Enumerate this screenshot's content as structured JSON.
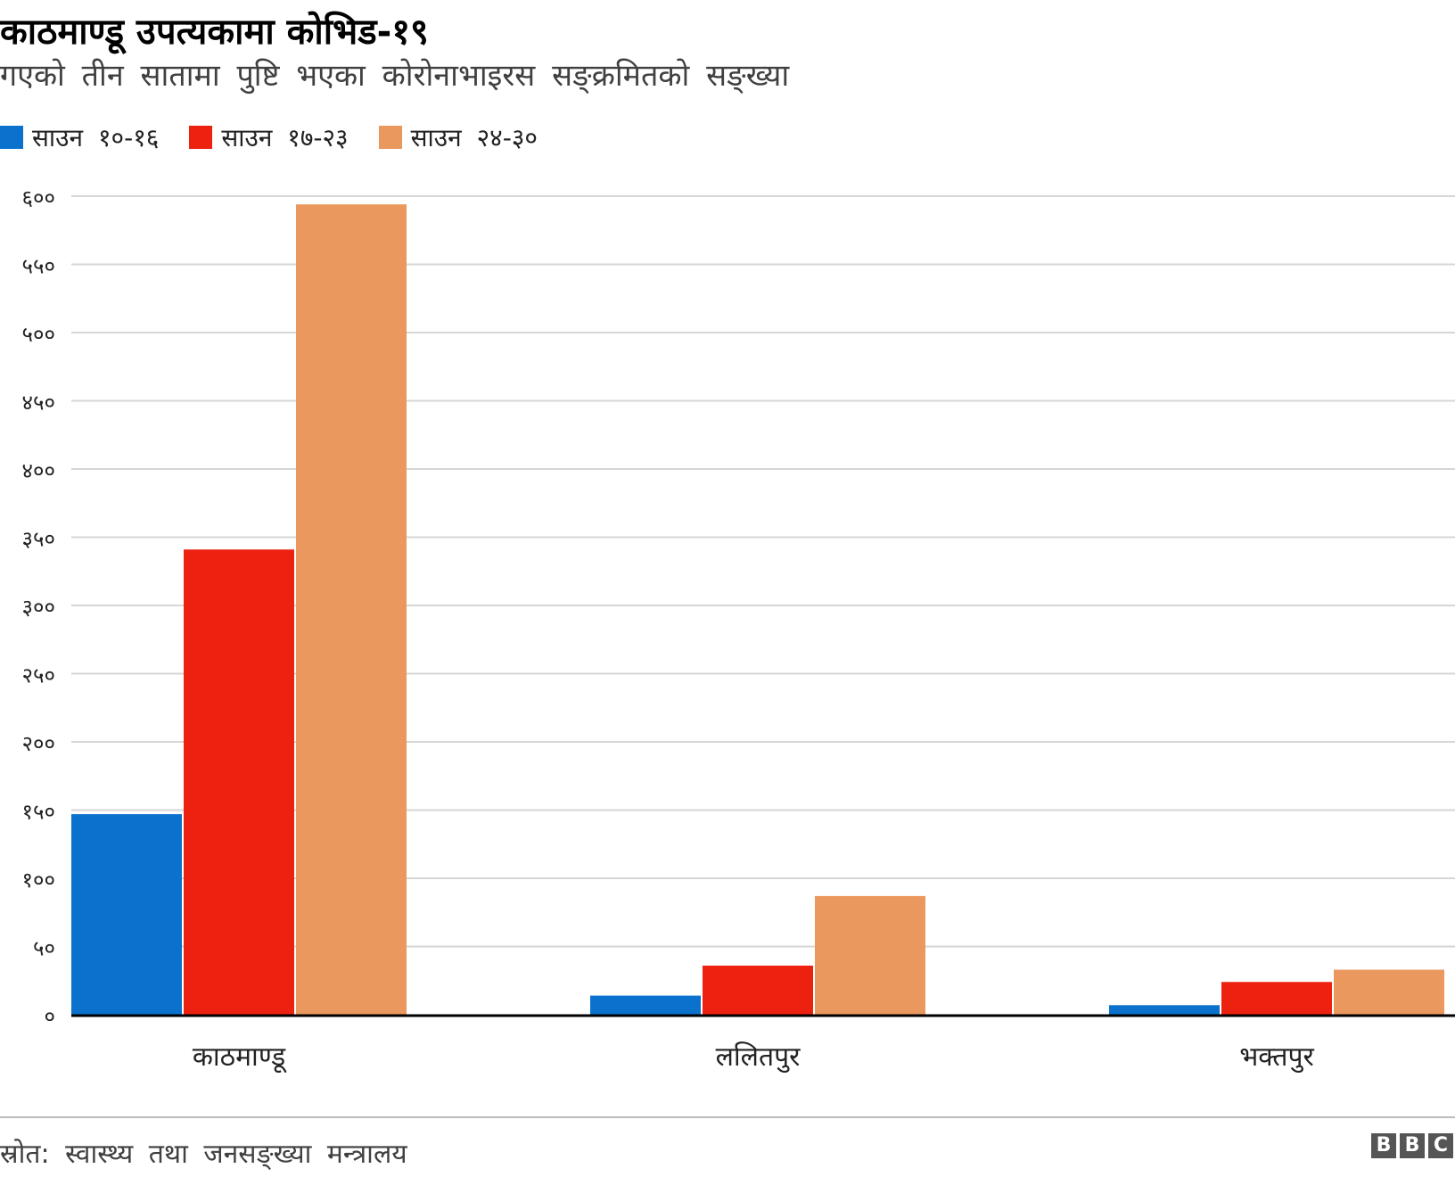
{
  "chart_data": {
    "type": "bar",
    "title": "काठमाण्डू उपत्यकामा कोभिड-१९",
    "subtitle": "गएको तीन सातामा पुष्टि भएका कोरोनाभाइरस सङ्क्रमितको सङ्ख्या",
    "categories": [
      "काठमाण्डू",
      "ललितपुर",
      "भक्तपुर"
    ],
    "series": [
      {
        "name": "साउन १०-१६",
        "color": "#0a72cc",
        "values": [
          147,
          14,
          7
        ]
      },
      {
        "name": "साउन १७-२३",
        "color": "#ed2110",
        "values": [
          341,
          36,
          24
        ]
      },
      {
        "name": "साउन २४-३०",
        "color": "#eb985e",
        "values": [
          594,
          87,
          33
        ]
      }
    ],
    "ylim": [
      0,
      600
    ],
    "y_ticks": [
      0,
      50,
      100,
      150,
      200,
      250,
      300,
      350,
      400,
      450,
      500,
      550,
      600
    ],
    "y_tick_labels": [
      "०",
      "५०",
      "१००",
      "१५०",
      "२००",
      "२५०",
      "३००",
      "३५०",
      "४००",
      "४५०",
      "५००",
      "५५०",
      "६००"
    ],
    "grid": true,
    "legend_position": "top-left",
    "xlabel": "",
    "ylabel": ""
  },
  "footer": {
    "source": "स्रोत: स्वास्थ्य तथा जनसङ्ख्या मन्त्रालय",
    "logo_letters": [
      "B",
      "B",
      "C"
    ]
  }
}
